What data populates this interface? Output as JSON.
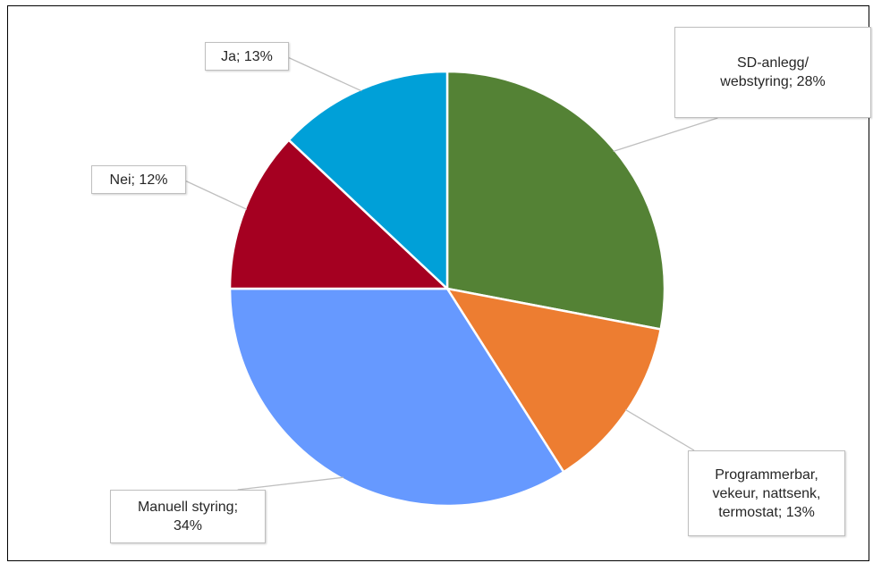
{
  "chart_data": {
    "type": "pie",
    "title": "",
    "slices": [
      {
        "name": "SD-anlegg/ webstyring",
        "value": 28,
        "color": "#548235",
        "label_lines": [
          "SD-anlegg/",
          "webstyring; 28%"
        ]
      },
      {
        "name": "Programmerbar, vekeur, nattsenk, termostat",
        "value": 13,
        "color": "#ed7d31",
        "label_lines": [
          "Programmerbar,",
          "vekeur, nattsenk,",
          "termostat; 13%"
        ]
      },
      {
        "name": "Manuell styring",
        "value": 34,
        "color": "#6699ff",
        "label_lines": [
          "Manuell styring;",
          "34%"
        ]
      },
      {
        "name": "Nei",
        "value": 12,
        "color": "#a50021",
        "label_lines": [
          "Nei; 12%"
        ]
      },
      {
        "name": "Ja",
        "value": 13,
        "color": "#00a0d8",
        "label_lines": [
          "Ja; 13%"
        ]
      }
    ],
    "legend": "none"
  }
}
